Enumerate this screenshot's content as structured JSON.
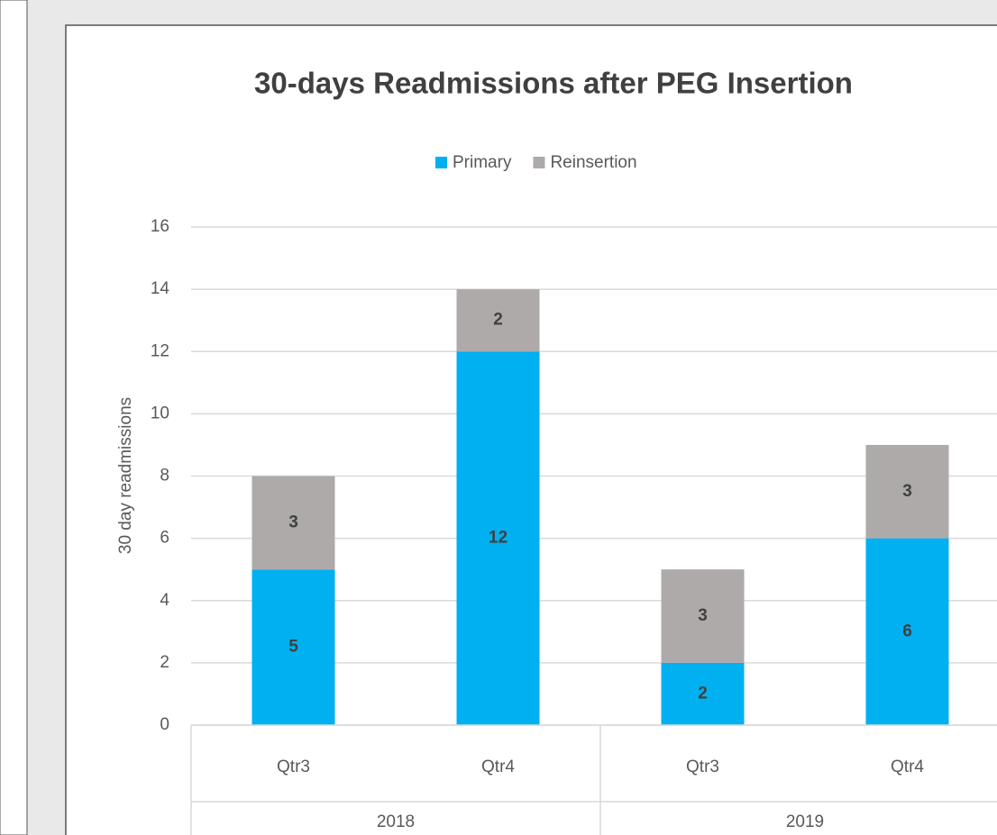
{
  "chart_data": {
    "type": "stacked_bar",
    "title": "30-days Readmissions after PEG Insertion",
    "y_label": "30 day readmissions",
    "categories": [
      "Qtr3",
      "Qtr4",
      "Qtr3",
      "Qtr4"
    ],
    "groups": [
      "2018",
      "2019"
    ],
    "series": [
      {
        "name": "Primary",
        "color": "#00b0f0",
        "values": [
          5,
          12,
          2,
          6
        ]
      },
      {
        "name": "Reinsertion",
        "color": "#aeaaaa",
        "values": [
          3,
          2,
          3,
          3
        ]
      }
    ],
    "ylim": [
      0,
      16
    ],
    "yticks": [
      0,
      2,
      4,
      6,
      8,
      10,
      12,
      14,
      16
    ],
    "grid": true,
    "legend": "top"
  }
}
